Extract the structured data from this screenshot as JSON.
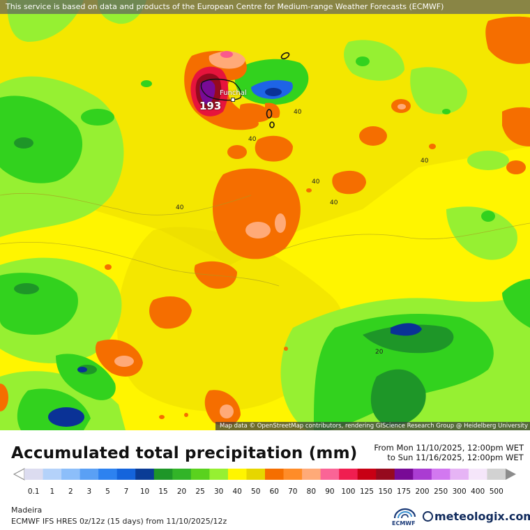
{
  "header": {
    "notice": "This service is based on data and products of the European Centre for Medium-range Weather Forecasts (ECMWF)"
  },
  "map": {
    "attribution": "Map data © OpenStreetMap contributors, rendering GIScience Research Group @ Heidelberg University",
    "city": "Funchal",
    "max_value": "193",
    "contour_labels": [
      "40",
      "40",
      "40",
      "40",
      "40",
      "40",
      "20"
    ],
    "colors": {
      "yellow": "#fff500",
      "yellow_dark": "#e6d600",
      "light_green": "#96f032",
      "green": "#32d21e",
      "dark_green": "#1e9628",
      "orange": "#f56e00",
      "orange_light": "#ff9632",
      "salmon": "#ffaa78",
      "pink": "#fa5a8c",
      "red": "#e6143c",
      "purple": "#780a96",
      "blue": "#1e64e6",
      "navy": "#0a3296"
    }
  },
  "title": "Accumulated total precipitation (mm)",
  "valid": {
    "from": "From Mon 11/10/2025, 12:00pm WET",
    "to": "to Sun 11/16/2025, 12:00pm WET"
  },
  "legend": {
    "labels": [
      "0.1",
      "1",
      "2",
      "3",
      "5",
      "7",
      "10",
      "15",
      "20",
      "25",
      "30",
      "40",
      "50",
      "60",
      "70",
      "80",
      "90",
      "100",
      "125",
      "150",
      "175",
      "200",
      "250",
      "300",
      "400",
      "500"
    ],
    "colors": [
      "#dcdcf0",
      "#b4d2fa",
      "#8cbefa",
      "#5aa0f5",
      "#2d82f0",
      "#1464dc",
      "#0a3c96",
      "#1e9628",
      "#32b428",
      "#5ad21e",
      "#96f032",
      "#fff500",
      "#e6d600",
      "#f56e00",
      "#ff8c28",
      "#ffaa78",
      "#fa6496",
      "#f01e50",
      "#c80014",
      "#960a1e",
      "#780a96",
      "#aa3cd2",
      "#d278f0",
      "#e6b4f5",
      "#f5e6fa",
      "#d2d2d2"
    ]
  },
  "footer": {
    "region": "Madeira",
    "model": "ECMWF IFS HRES 0z/12z (15 days) from 11/10/2025/12z",
    "ecmwf_logo": "ECMWF",
    "brand": "meteologix.com"
  }
}
